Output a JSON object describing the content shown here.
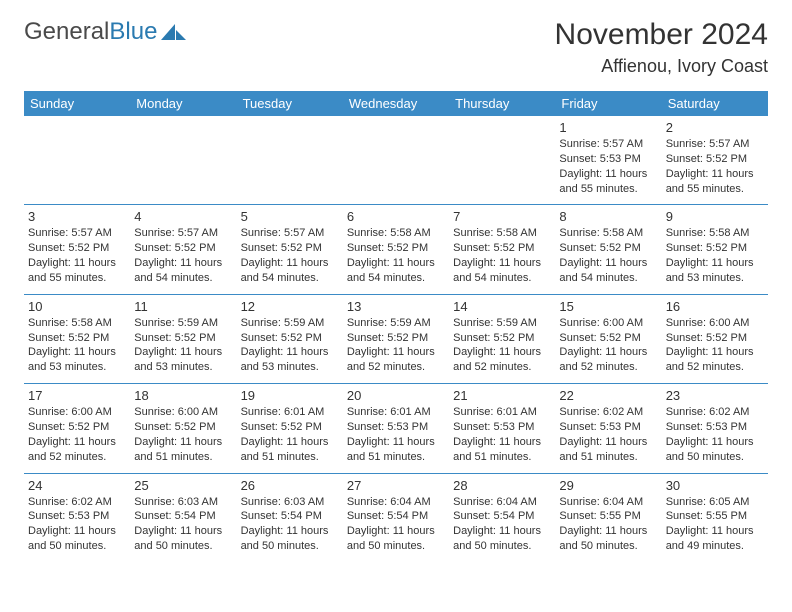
{
  "brand": {
    "part1": "General",
    "part2": "Blue",
    "logo_color": "#2a7ab0"
  },
  "title": "November 2024",
  "location": "Affienou, Ivory Coast",
  "header_bg": "#3b8bc6",
  "header_fg": "#ffffff",
  "cell_border": "#3b8bc6",
  "day_names": [
    "Sunday",
    "Monday",
    "Tuesday",
    "Wednesday",
    "Thursday",
    "Friday",
    "Saturday"
  ],
  "weeks": [
    [
      null,
      null,
      null,
      null,
      null,
      {
        "n": "1",
        "sr": "Sunrise: 5:57 AM",
        "ss": "Sunset: 5:53 PM",
        "d1": "Daylight: 11 hours",
        "d2": "and 55 minutes."
      },
      {
        "n": "2",
        "sr": "Sunrise: 5:57 AM",
        "ss": "Sunset: 5:52 PM",
        "d1": "Daylight: 11 hours",
        "d2": "and 55 minutes."
      }
    ],
    [
      {
        "n": "3",
        "sr": "Sunrise: 5:57 AM",
        "ss": "Sunset: 5:52 PM",
        "d1": "Daylight: 11 hours",
        "d2": "and 55 minutes."
      },
      {
        "n": "4",
        "sr": "Sunrise: 5:57 AM",
        "ss": "Sunset: 5:52 PM",
        "d1": "Daylight: 11 hours",
        "d2": "and 54 minutes."
      },
      {
        "n": "5",
        "sr": "Sunrise: 5:57 AM",
        "ss": "Sunset: 5:52 PM",
        "d1": "Daylight: 11 hours",
        "d2": "and 54 minutes."
      },
      {
        "n": "6",
        "sr": "Sunrise: 5:58 AM",
        "ss": "Sunset: 5:52 PM",
        "d1": "Daylight: 11 hours",
        "d2": "and 54 minutes."
      },
      {
        "n": "7",
        "sr": "Sunrise: 5:58 AM",
        "ss": "Sunset: 5:52 PM",
        "d1": "Daylight: 11 hours",
        "d2": "and 54 minutes."
      },
      {
        "n": "8",
        "sr": "Sunrise: 5:58 AM",
        "ss": "Sunset: 5:52 PM",
        "d1": "Daylight: 11 hours",
        "d2": "and 54 minutes."
      },
      {
        "n": "9",
        "sr": "Sunrise: 5:58 AM",
        "ss": "Sunset: 5:52 PM",
        "d1": "Daylight: 11 hours",
        "d2": "and 53 minutes."
      }
    ],
    [
      {
        "n": "10",
        "sr": "Sunrise: 5:58 AM",
        "ss": "Sunset: 5:52 PM",
        "d1": "Daylight: 11 hours",
        "d2": "and 53 minutes."
      },
      {
        "n": "11",
        "sr": "Sunrise: 5:59 AM",
        "ss": "Sunset: 5:52 PM",
        "d1": "Daylight: 11 hours",
        "d2": "and 53 minutes."
      },
      {
        "n": "12",
        "sr": "Sunrise: 5:59 AM",
        "ss": "Sunset: 5:52 PM",
        "d1": "Daylight: 11 hours",
        "d2": "and 53 minutes."
      },
      {
        "n": "13",
        "sr": "Sunrise: 5:59 AM",
        "ss": "Sunset: 5:52 PM",
        "d1": "Daylight: 11 hours",
        "d2": "and 52 minutes."
      },
      {
        "n": "14",
        "sr": "Sunrise: 5:59 AM",
        "ss": "Sunset: 5:52 PM",
        "d1": "Daylight: 11 hours",
        "d2": "and 52 minutes."
      },
      {
        "n": "15",
        "sr": "Sunrise: 6:00 AM",
        "ss": "Sunset: 5:52 PM",
        "d1": "Daylight: 11 hours",
        "d2": "and 52 minutes."
      },
      {
        "n": "16",
        "sr": "Sunrise: 6:00 AM",
        "ss": "Sunset: 5:52 PM",
        "d1": "Daylight: 11 hours",
        "d2": "and 52 minutes."
      }
    ],
    [
      {
        "n": "17",
        "sr": "Sunrise: 6:00 AM",
        "ss": "Sunset: 5:52 PM",
        "d1": "Daylight: 11 hours",
        "d2": "and 52 minutes."
      },
      {
        "n": "18",
        "sr": "Sunrise: 6:00 AM",
        "ss": "Sunset: 5:52 PM",
        "d1": "Daylight: 11 hours",
        "d2": "and 51 minutes."
      },
      {
        "n": "19",
        "sr": "Sunrise: 6:01 AM",
        "ss": "Sunset: 5:52 PM",
        "d1": "Daylight: 11 hours",
        "d2": "and 51 minutes."
      },
      {
        "n": "20",
        "sr": "Sunrise: 6:01 AM",
        "ss": "Sunset: 5:53 PM",
        "d1": "Daylight: 11 hours",
        "d2": "and 51 minutes."
      },
      {
        "n": "21",
        "sr": "Sunrise: 6:01 AM",
        "ss": "Sunset: 5:53 PM",
        "d1": "Daylight: 11 hours",
        "d2": "and 51 minutes."
      },
      {
        "n": "22",
        "sr": "Sunrise: 6:02 AM",
        "ss": "Sunset: 5:53 PM",
        "d1": "Daylight: 11 hours",
        "d2": "and 51 minutes."
      },
      {
        "n": "23",
        "sr": "Sunrise: 6:02 AM",
        "ss": "Sunset: 5:53 PM",
        "d1": "Daylight: 11 hours",
        "d2": "and 50 minutes."
      }
    ],
    [
      {
        "n": "24",
        "sr": "Sunrise: 6:02 AM",
        "ss": "Sunset: 5:53 PM",
        "d1": "Daylight: 11 hours",
        "d2": "and 50 minutes."
      },
      {
        "n": "25",
        "sr": "Sunrise: 6:03 AM",
        "ss": "Sunset: 5:54 PM",
        "d1": "Daylight: 11 hours",
        "d2": "and 50 minutes."
      },
      {
        "n": "26",
        "sr": "Sunrise: 6:03 AM",
        "ss": "Sunset: 5:54 PM",
        "d1": "Daylight: 11 hours",
        "d2": "and 50 minutes."
      },
      {
        "n": "27",
        "sr": "Sunrise: 6:04 AM",
        "ss": "Sunset: 5:54 PM",
        "d1": "Daylight: 11 hours",
        "d2": "and 50 minutes."
      },
      {
        "n": "28",
        "sr": "Sunrise: 6:04 AM",
        "ss": "Sunset: 5:54 PM",
        "d1": "Daylight: 11 hours",
        "d2": "and 50 minutes."
      },
      {
        "n": "29",
        "sr": "Sunrise: 6:04 AM",
        "ss": "Sunset: 5:55 PM",
        "d1": "Daylight: 11 hours",
        "d2": "and 50 minutes."
      },
      {
        "n": "30",
        "sr": "Sunrise: 6:05 AM",
        "ss": "Sunset: 5:55 PM",
        "d1": "Daylight: 11 hours",
        "d2": "and 49 minutes."
      }
    ]
  ]
}
